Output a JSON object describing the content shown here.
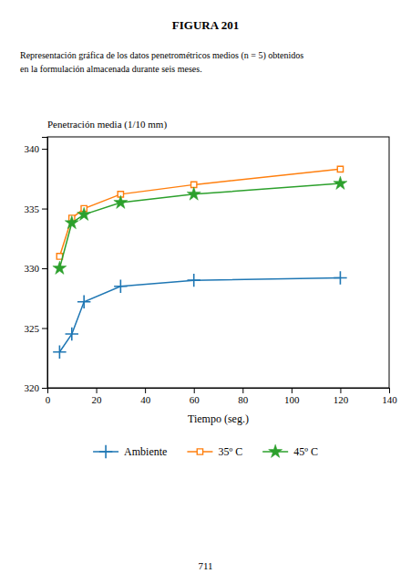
{
  "chart_data": {
    "type": "line",
    "title": "FIGURA 201",
    "subtitle": [
      "Representación gráfica de los datos penetrométricos medios (n  =  5) obtenidos",
      "en la formulación almacenada durante seis meses."
    ],
    "annotations": [
      "711"
    ],
    "x_label": "Tiempo (seg.)",
    "y_label": "Penetración media (1/10 mm)",
    "x": [
      5,
      10,
      15,
      30,
      60,
      120
    ],
    "series": [
      {
        "name": "Ambiente",
        "marker": "plus",
        "values": [
          323.0,
          324.5,
          327.2,
          328.5,
          329.0,
          329.2
        ]
      },
      {
        "name": "35º C",
        "marker": "square",
        "values": [
          331.0,
          334.2,
          335.0,
          336.2,
          337.0,
          338.3
        ]
      },
      {
        "name": "45º C",
        "marker": "star",
        "values": [
          330.0,
          333.8,
          334.5,
          335.5,
          336.2,
          337.1
        ]
      }
    ],
    "xlim": [
      0,
      140
    ],
    "ylim": [
      320,
      341
    ],
    "xticks": [
      0,
      20,
      40,
      60,
      80,
      100,
      120,
      140
    ],
    "yticks": [
      320,
      325,
      330,
      335,
      340
    ],
    "grid": false,
    "legend": "bottom"
  }
}
